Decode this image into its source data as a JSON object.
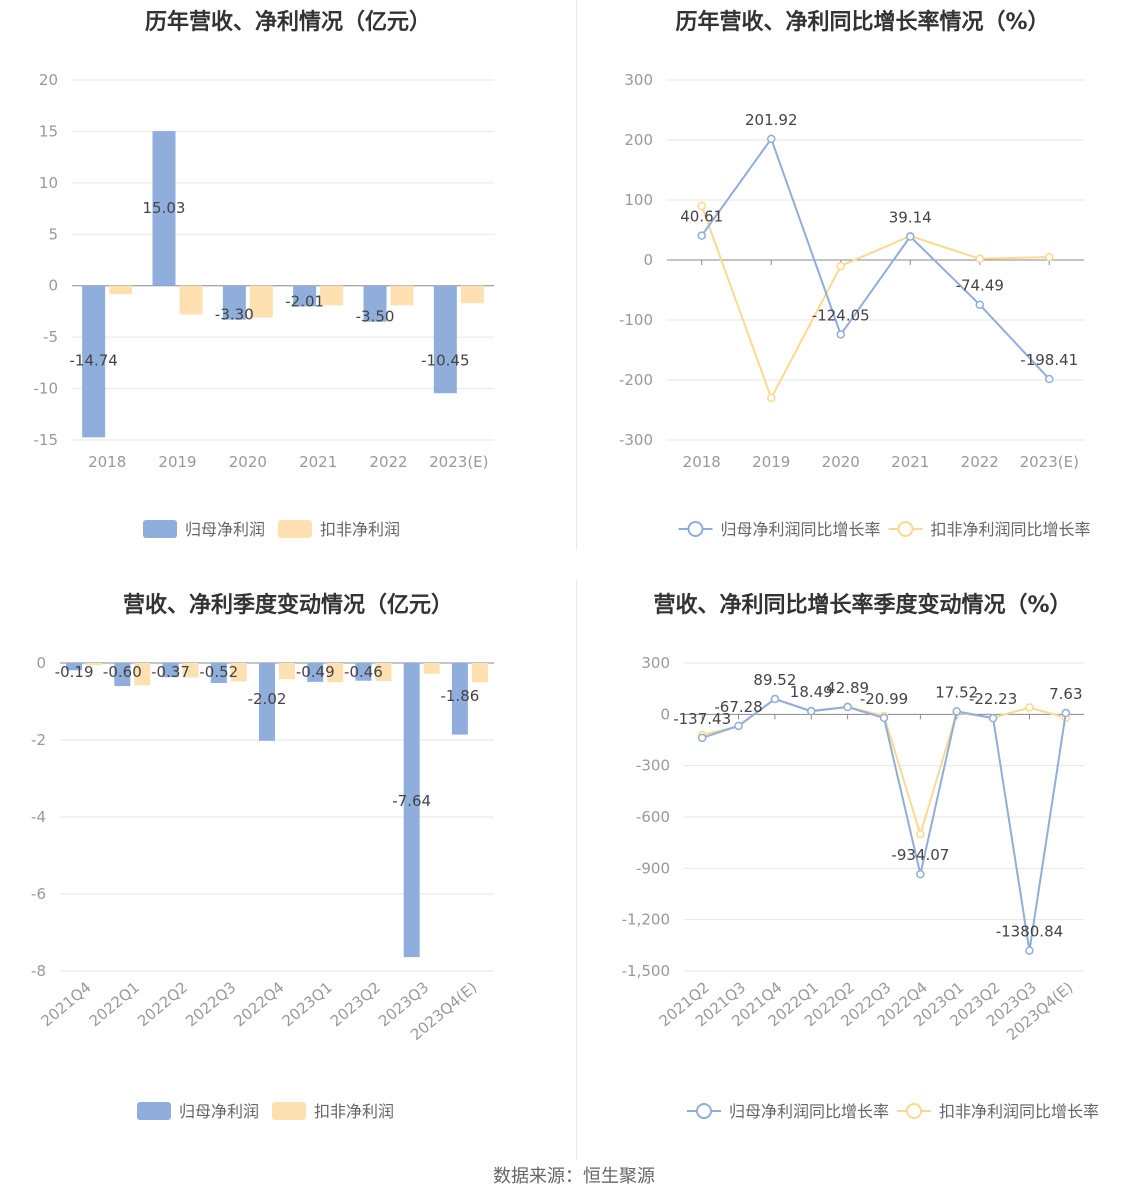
{
  "colors": {
    "primary": "#8FAEDB",
    "secondary": "#FFE0B0",
    "secondary_line": "#FCD98E",
    "grid": "#e6e6e6",
    "axis_text": "#999999",
    "label_text": "#444444"
  },
  "legend_bar": [
    "归母净利润",
    "扣非净利润"
  ],
  "legend_line": [
    "归母净利润同比增长率",
    "扣非净利润同比增长率"
  ],
  "source": "数据来源：恒生聚源",
  "chart_data": [
    {
      "type": "bar",
      "title": "历年营收、净利情况（亿元）",
      "categories": [
        "2018",
        "2019",
        "2020",
        "2021",
        "2022",
        "2023(E)"
      ],
      "ylim": [
        -15,
        20
      ],
      "yticks": [
        20,
        15,
        10,
        5,
        0,
        -5,
        -10,
        -15
      ],
      "series": [
        {
          "name": "归母净利润",
          "values": [
            -14.74,
            15.03,
            -3.3,
            -2.01,
            -3.5,
            -10.45
          ],
          "labels": [
            "-14.74",
            "15.03",
            "-3.30",
            "-2.01",
            "-3.50",
            "-10.45"
          ]
        },
        {
          "name": "扣非净利润",
          "values": [
            -0.8,
            -2.8,
            -3.1,
            -1.9,
            -1.9,
            -1.7
          ]
        }
      ]
    },
    {
      "type": "line",
      "title": "历年营收、净利同比增长率情况（%）",
      "categories": [
        "2018",
        "2019",
        "2020",
        "2021",
        "2022",
        "2023(E)"
      ],
      "ylim": [
        -300,
        300
      ],
      "yticks": [
        300,
        200,
        100,
        0,
        -100,
        -200,
        -300
      ],
      "series": [
        {
          "name": "归母净利润同比增长率",
          "values": [
            40.61,
            201.92,
            -124.05,
            39.14,
            -74.49,
            -198.41
          ],
          "labels": [
            "40.61",
            "201.92",
            "-124.05",
            "39.14",
            "-74.49",
            "-198.41"
          ]
        },
        {
          "name": "扣非净利润同比增长率",
          "values": [
            90,
            -230,
            -10,
            40,
            2,
            5
          ]
        }
      ]
    },
    {
      "type": "bar",
      "title": "营收、净利季度变动情况（亿元）",
      "categories": [
        "2021Q4",
        "2022Q1",
        "2022Q2",
        "2022Q3",
        "2022Q4",
        "2023Q1",
        "2023Q2",
        "2023Q3",
        "2023Q4(E)"
      ],
      "ylim": [
        -8,
        0
      ],
      "yticks": [
        0,
        -2,
        -4,
        -6,
        -8
      ],
      "series": [
        {
          "name": "归母净利润",
          "values": [
            -0.19,
            -0.6,
            -0.37,
            -0.52,
            -2.02,
            -0.49,
            -0.46,
            -7.64,
            -1.86
          ],
          "labels": [
            "-0.19",
            "-0.60",
            "-0.37",
            "-0.52",
            "-2.02",
            "-0.49",
            "-0.46",
            "-7.64",
            "-1.86"
          ]
        },
        {
          "name": "扣非净利润",
          "values": [
            -0.05,
            -0.58,
            -0.38,
            -0.48,
            -0.42,
            -0.5,
            -0.47,
            -0.28,
            -0.5
          ]
        }
      ]
    },
    {
      "type": "line",
      "title": "营收、净利同比增长率季度变动情况（%）",
      "categories": [
        "2021Q2",
        "2021Q3",
        "2021Q4",
        "2022Q1",
        "2022Q2",
        "2022Q3",
        "2022Q4",
        "2023Q1",
        "2023Q2",
        "2023Q3",
        "2023Q4(E)"
      ],
      "ylim": [
        -1500,
        300
      ],
      "yticks": [
        300,
        0,
        -300,
        -600,
        -900,
        -1200,
        -1500
      ],
      "ytick_labels": [
        "300",
        "0",
        "-300",
        "-600",
        "-900",
        "-1,200",
        "-1,500"
      ],
      "series": [
        {
          "name": "归母净利润同比增长率",
          "values": [
            -137.43,
            -67.28,
            89.52,
            18.49,
            42.89,
            -20.99,
            -934.07,
            17.52,
            -22.23,
            -1380.84,
            7.63
          ],
          "labels": [
            "-137.43",
            "-67.28",
            "89.52",
            "18.49",
            "42.89",
            "-20.99",
            "-934.07",
            "17.52",
            "-22.23",
            "-1380.84",
            "7.63"
          ]
        },
        {
          "name": "扣非净利润同比增长率",
          "values": [
            -120,
            -70,
            90,
            20,
            45,
            -10,
            -700,
            10,
            -20,
            40,
            -20
          ]
        }
      ]
    }
  ]
}
